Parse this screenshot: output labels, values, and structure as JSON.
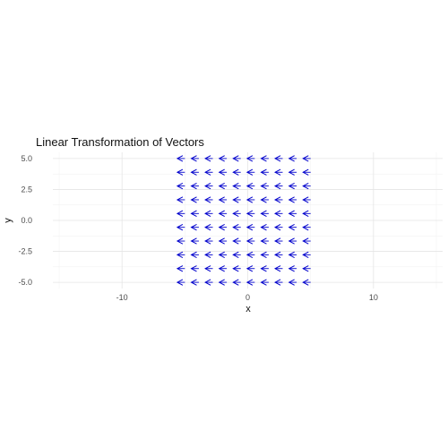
{
  "chart_data": {
    "type": "quiver",
    "title": "Linear Transformation of Vectors",
    "xlabel": "x",
    "ylabel": "y",
    "xlim": [
      -15.5,
      15.5
    ],
    "ylim": [
      -5.5,
      5.5
    ],
    "x_ticks": [
      -10,
      0,
      10
    ],
    "x_tick_labels": [
      "-10",
      "0",
      "10"
    ],
    "y_ticks": [
      -5,
      -2.5,
      0,
      2.5,
      5
    ],
    "y_tick_labels": [
      "-5.0",
      "-2.5",
      "0.0",
      "2.5",
      "5.0"
    ],
    "grid": true,
    "legend": "none",
    "arrow_color": "#0000cc",
    "grid_origins_x": [
      -5,
      -3.889,
      -2.778,
      -1.667,
      -0.556,
      0.556,
      1.667,
      2.778,
      3.889,
      5
    ],
    "grid_origins_y": [
      -5,
      -3.889,
      -2.778,
      -1.667,
      -0.556,
      0.556,
      1.667,
      2.778,
      3.889,
      5
    ],
    "vector_dx": 0.6,
    "vector_dy": 0
  }
}
